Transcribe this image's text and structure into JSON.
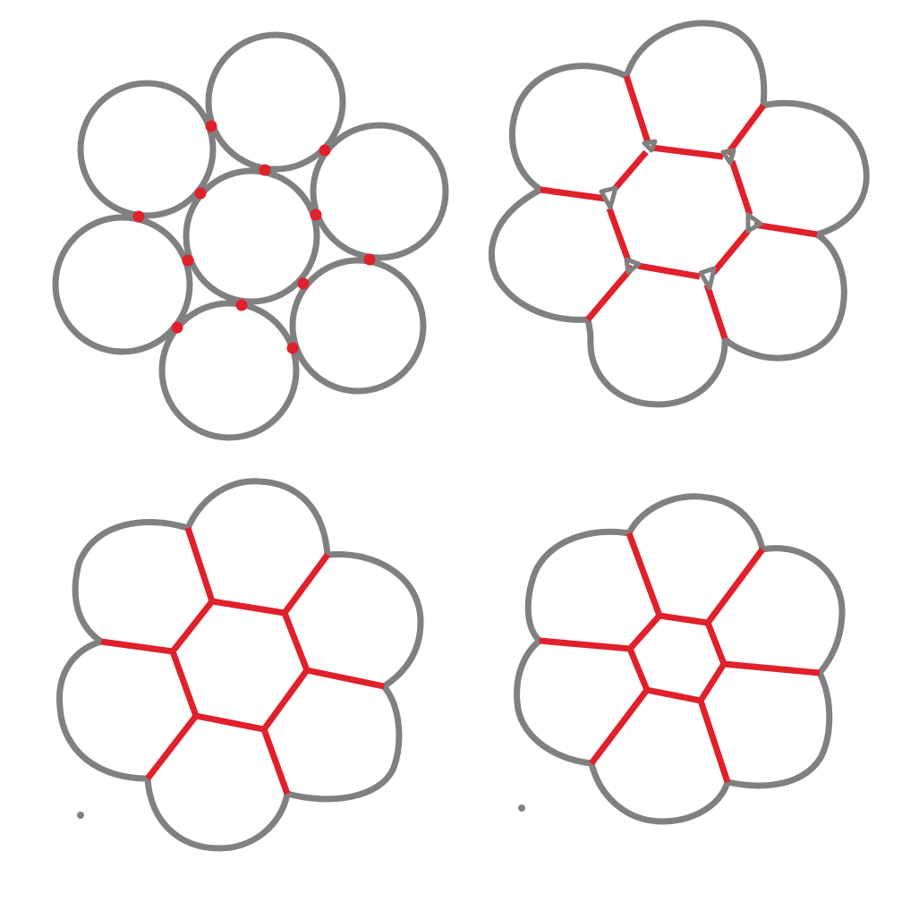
{
  "colors": {
    "background": "#ffffff",
    "outline": "#808080",
    "edge": "#e0202a"
  },
  "panels": [
    {
      "id": "panel-1",
      "stage": "tangent-circles",
      "description_visible": false
    },
    {
      "id": "panel-2",
      "stage": "early-merge",
      "description_visible": false
    },
    {
      "id": "panel-3",
      "stage": "regular-hexagon-cluster",
      "description_visible": false
    },
    {
      "id": "panel-4",
      "stage": "shrunk-center-cluster",
      "description_visible": false
    }
  ]
}
